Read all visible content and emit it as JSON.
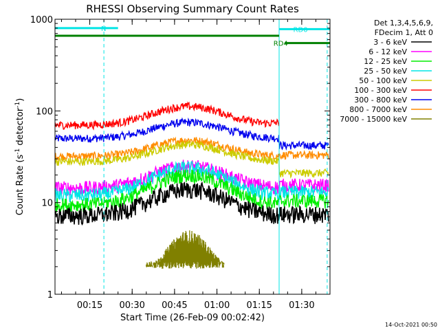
{
  "chart_data": {
    "type": "line",
    "title": "RHESSI Observing Summary Count Rates",
    "xlabel": "Start Time (26-Feb-09 00:02:42)",
    "ylabel_parts": [
      "Count Rate (s",
      "-1",
      " detector",
      "-1",
      ")"
    ],
    "ylabel": "Count Rate (s^-1 detector^-1)",
    "yscale": "log",
    "ylim": [
      1,
      1000
    ],
    "xlim": [
      "00:02:42",
      "01:40:00"
    ],
    "x_ticks": [
      "00:15",
      "00:30",
      "00:45",
      "01:00",
      "01:15",
      "01:30"
    ],
    "y_ticks": [
      "1",
      "10",
      "100",
      "1000"
    ],
    "legend_header": [
      "Det 1,3,4,5,6,9,",
      "FDecim 1, Att 0"
    ],
    "legend_position": "right",
    "timestamp": "14-Oct-2021 00:50",
    "flags": [
      {
        "label": "N",
        "color": "#00e5e5",
        "start": "00:02:42",
        "end": "00:25:00",
        "level": 800
      },
      {
        "label": "RD0",
        "color": "#00e5e5",
        "start": "01:22:00",
        "end": "01:40:00",
        "level": 780
      },
      {
        "label": "",
        "color": "#008000",
        "start": "00:02:42",
        "end": "01:22:00",
        "level": 660
      },
      {
        "label": "RD4",
        "color": "#008000",
        "start": "01:24:00",
        "end": "01:40:00",
        "level": 550
      }
    ],
    "vertical_lines": [
      {
        "time": "00:20:00",
        "style": "dashed",
        "color": "#00e5e5"
      },
      {
        "time": "01:22:00",
        "style": "solid",
        "color": "#00e5e5"
      },
      {
        "time": "01:39:00",
        "style": "dashed",
        "color": "#00e5e5"
      }
    ],
    "peak_time": "00:50:00",
    "series": [
      {
        "name": "3 - 6 keV",
        "color": "#000000",
        "base": 7.2,
        "peak": 14,
        "after": 7.5
      },
      {
        "name": "6 - 12 keV",
        "color": "#ff00ff",
        "base": 14.5,
        "peak": 25,
        "after": 15.5
      },
      {
        "name": "12 - 25 keV",
        "color": "#00ee00",
        "base": 9.5,
        "peak": 20,
        "after": 10.5
      },
      {
        "name": "25 - 50 keV",
        "color": "#00e5e5",
        "base": 12,
        "peak": 24,
        "after": 13
      },
      {
        "name": "50 - 100 keV",
        "color": "#cccc00",
        "base": 28,
        "peak": 43,
        "after": 21
      },
      {
        "name": "100 - 300 keV",
        "color": "#ff0000",
        "base": 70,
        "peak": 112,
        "after": 0
      },
      {
        "name": "300 - 800 keV",
        "color": "#0000ee",
        "base": 50,
        "peak": 75,
        "after": 42
      },
      {
        "name": "800 - 7000 keV",
        "color": "#ff8c00",
        "base": 32,
        "peak": 48,
        "after": 33
      },
      {
        "name": "7000 - 15000 keV",
        "color": "#808000",
        "base": 0,
        "peak": 4.5,
        "after": 0
      }
    ]
  }
}
